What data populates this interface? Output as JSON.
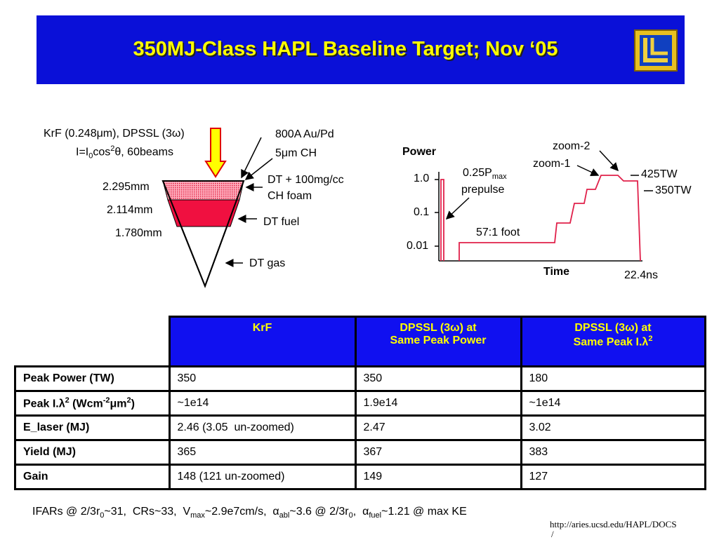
{
  "header": {
    "title": "350MJ-Class HAPL Baseline Target; Nov ‘05"
  },
  "target": {
    "laser": "KrF (0.248μm), DPSSL (3ω)",
    "intensity": [
      "I=I",
      "0",
      "cos",
      "2",
      "θ, 60beams"
    ],
    "coating": [
      "800A Au/Pd",
      "5μm CH"
    ],
    "foam": [
      "DT + 100mg/cc",
      "CH foam"
    ],
    "fuel": "DT fuel",
    "gas": "DT gas",
    "radii": [
      "2.295mm",
      "2.114mm",
      "1.780mm"
    ]
  },
  "pulse": {
    "y_label": "Power",
    "x_label": "Time",
    "levels": [
      "1.0",
      "0.1",
      "0.01"
    ],
    "zoom2": "zoom-2",
    "zoom1": "zoom-1",
    "peak1": "425TW",
    "peak2": "350TW",
    "prepulse": [
      "0.25P",
      "max",
      "prepulse"
    ],
    "foot": "57:1 foot",
    "duration": "22.4ns"
  },
  "table": {
    "header": [
      "KrF",
      [
        "DPSSL (3ω) at",
        "Same Peak Power"
      ],
      [
        "DPSSL (3ω) at",
        "Same Peak I.λ",
        "2"
      ]
    ],
    "rows": [
      [
        "Peak Power (TW)",
        "350",
        "350",
        "180"
      ],
      [
        [
          "Peak I.λ",
          "2",
          " (Wcm",
          "-2",
          "μm",
          "2",
          ")"
        ],
        "~1e14",
        "1.9e14",
        "~1e14"
      ],
      [
        "E_laser (MJ)",
        "2.46 (3.05  un-zoomed)",
        "2.47",
        "3.02"
      ],
      [
        "Yield (MJ)",
        "365",
        "367",
        "383"
      ],
      [
        "Gain",
        "148 (121 un-zoomed)",
        "149",
        "127"
      ]
    ]
  },
  "footer": {
    "note": [
      "IFARs @ 2/3r",
      "0",
      "~31,  CRs~33,  V",
      "max",
      "~2.9e7cm/s,  α",
      "abl",
      "~3.6 @ 2/3r",
      "0",
      ",  α",
      "fuel",
      "~1.21 @ max KE"
    ],
    "url": [
      "http://aries.ucsd.edu/HAPL/DOCS",
      "/"
    ]
  }
}
